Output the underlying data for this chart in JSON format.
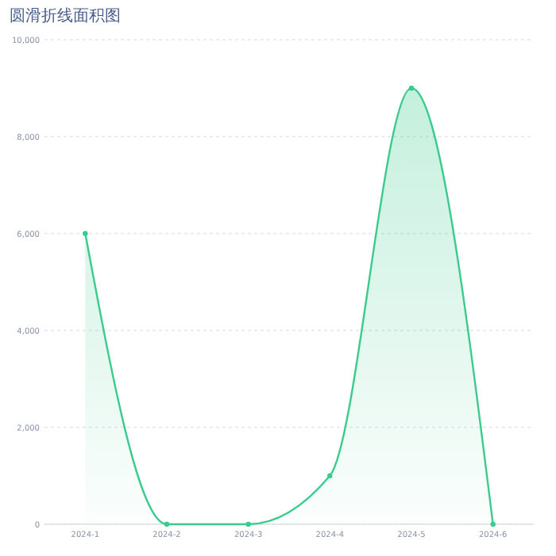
{
  "chart_data": {
    "type": "area",
    "title": "圆滑折线面积图",
    "categories": [
      "2024-1",
      "2024-2",
      "2024-3",
      "2024-4",
      "2024-5",
      "2024-6"
    ],
    "series": [
      {
        "color": "#3ccb8e",
        "values": [
          6000,
          0,
          0,
          1000,
          9000,
          0
        ]
      }
    ],
    "ylim": [
      0,
      10000
    ],
    "yticks": [
      {
        "value": 0,
        "label": "0"
      },
      {
        "value": 2000,
        "label": "2,000"
      },
      {
        "value": 4000,
        "label": "4,000"
      },
      {
        "value": 6000,
        "label": "6,000"
      },
      {
        "value": 8000,
        "label": "8,000"
      },
      {
        "value": 10000,
        "label": "10,000"
      }
    ],
    "grid": "y",
    "marker": "circle",
    "line_style": "solid"
  }
}
